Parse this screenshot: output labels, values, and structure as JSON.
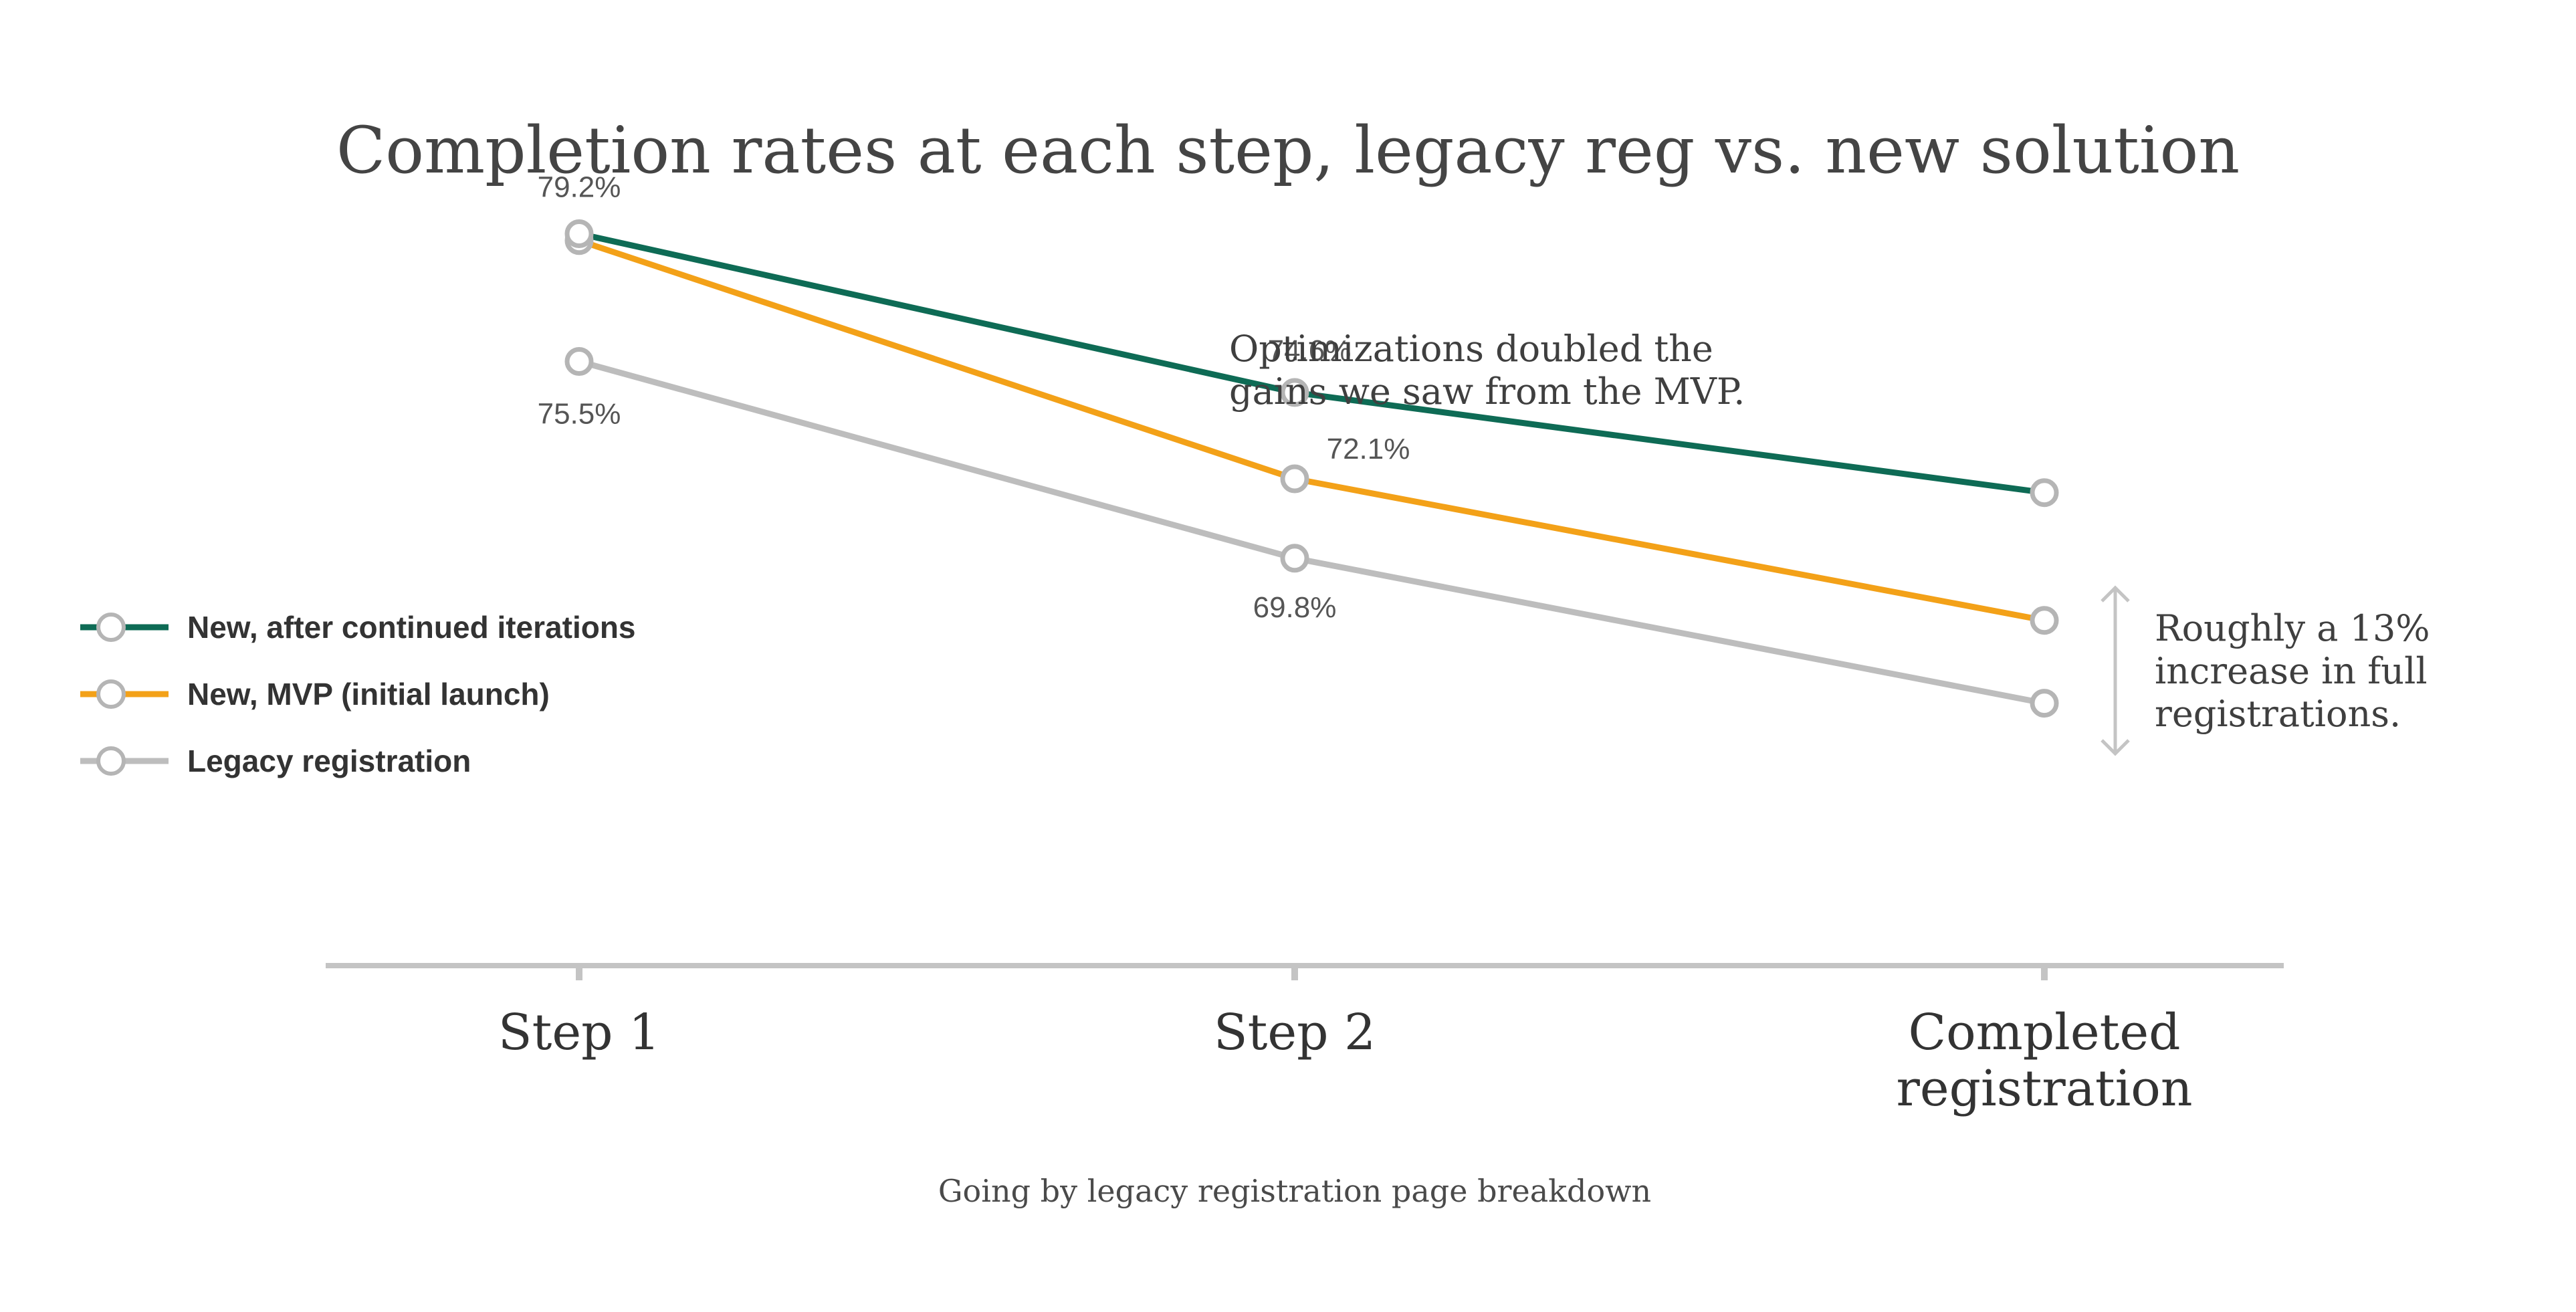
{
  "chart_data": {
    "type": "line",
    "title": "Completion rates at each step, legacy reg vs. new solution",
    "xlabel": "Going by legacy registration page breakdown",
    "ylabel": "",
    "categories": [
      "Step 1",
      "Step 2",
      "Completed registration"
    ],
    "category_lines": [
      [
        "Step 1"
      ],
      [
        "Step 2"
      ],
      [
        "Completed",
        "registration"
      ]
    ],
    "ylim": [
      58,
      85
    ],
    "grid": false,
    "legend_position": "left",
    "series": [
      {
        "name": "New, after continued iterations",
        "color": "#0e6b55",
        "values": [
          79.2,
          74.6,
          71.7
        ],
        "labels": [
          "79.2%",
          "74.6%",
          ""
        ]
      },
      {
        "name": "New, MVP (initial launch)",
        "color": "#f3a118",
        "values": [
          79.0,
          72.1,
          68.0
        ],
        "labels": [
          "",
          "72.1%",
          ""
        ]
      },
      {
        "name": "Legacy registration",
        "color": "#bdbdbd",
        "values": [
          75.5,
          69.8,
          65.6
        ],
        "labels": [
          "75.5%",
          "69.8%",
          ""
        ]
      }
    ],
    "annotations": [
      {
        "id": "optimizations",
        "lines": [
          "Optimizations doubled the",
          "gains we saw from the MVP."
        ]
      },
      {
        "id": "increase",
        "lines": [
          "Roughly a 13%",
          "increase in full",
          "registrations."
        ]
      }
    ]
  },
  "colors": {
    "axis": "#c4c4c4",
    "marker_stroke": "#b5b5b5",
    "text_dark": "#3f3f3f",
    "text_mid": "#555555"
  }
}
